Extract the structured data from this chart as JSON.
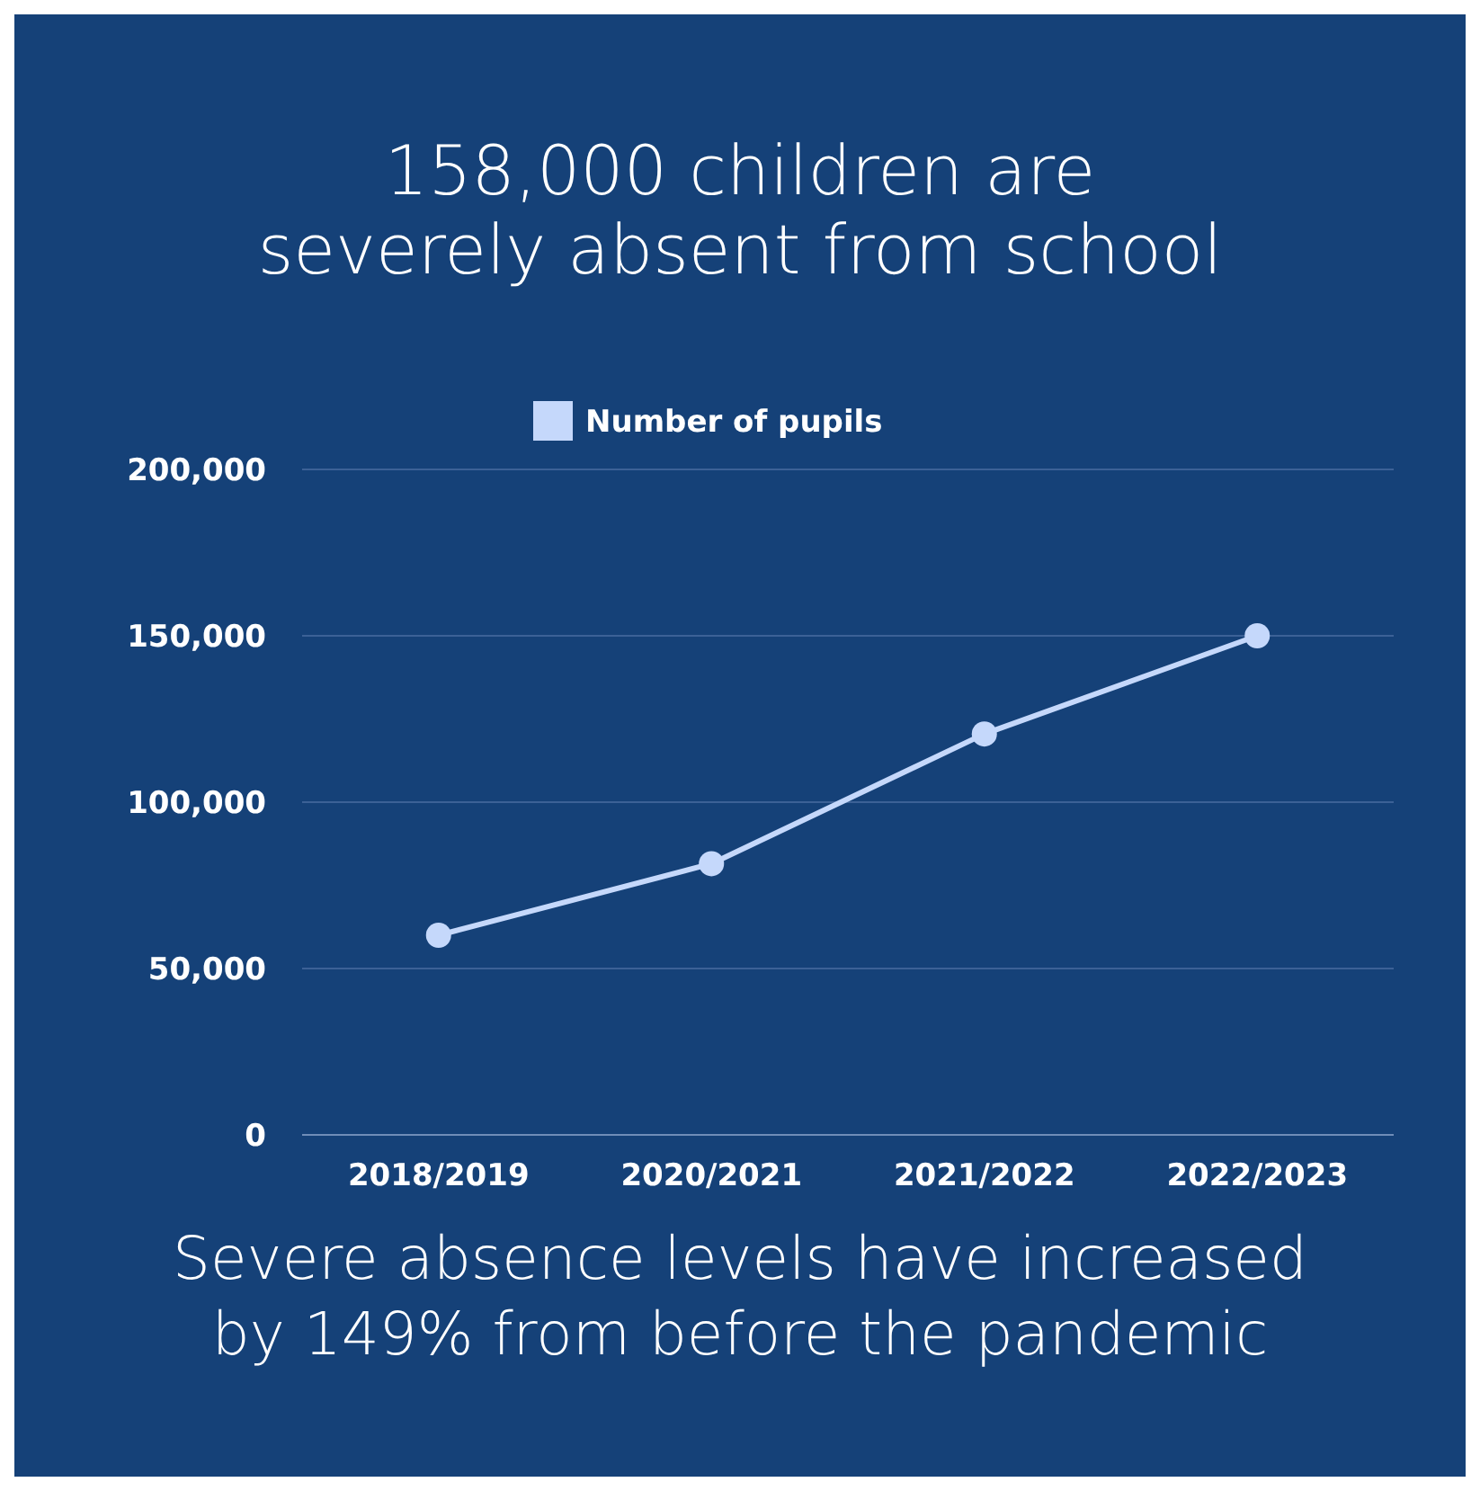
{
  "chart_data": {
    "type": "line",
    "title": "158,000 children are severely absent from school",
    "annotations": [
      "Severe absence levels have increased by 149% from before the pandemic"
    ],
    "categories": [
      "2018/2019",
      "2020/2021",
      "2021/2022",
      "2022/2023"
    ],
    "series": [
      {
        "name": "Number of pupils",
        "color": "#c5d8fb",
        "values": [
          60000,
          81500,
          120500,
          150000
        ]
      }
    ],
    "ylim": [
      0,
      200000
    ],
    "yticks": [
      {
        "value": 0,
        "label": "0"
      },
      {
        "value": 50000,
        "label": "50,000"
      },
      {
        "value": 100000,
        "label": "100,000"
      },
      {
        "value": 150000,
        "label": "150,000"
      },
      {
        "value": 200000,
        "label": "200,000"
      }
    ],
    "grid": "y",
    "legend": "top",
    "marker": "circle",
    "line_style": "solid"
  }
}
